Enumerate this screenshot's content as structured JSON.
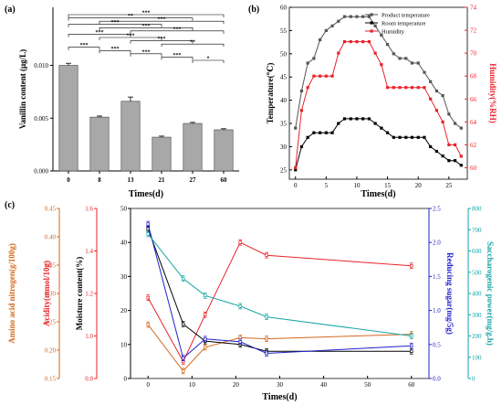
{
  "panels": {
    "a": "(a)",
    "b": "(b)",
    "c": "(c)"
  },
  "chart_data": [
    {
      "type": "bar",
      "panel": "(a)",
      "categories": [
        "0",
        "8",
        "13",
        "21",
        "27",
        "60"
      ],
      "values": [
        0.01,
        0.0051,
        0.0066,
        0.0032,
        0.0045,
        0.0039
      ],
      "errors": [
        0.0002,
        0.0001,
        0.0004,
        0.0001,
        0.0001,
        0.0001
      ],
      "xlabel": "Times(d)",
      "ylabel": "Vanillin content (μg/L)",
      "ylim": [
        0,
        0.0155
      ],
      "yticks": [
        "0.000",
        "0.005",
        "0.010"
      ],
      "bar_color": "#a8a8a8",
      "significance": [
        {
          "from": "0",
          "to": "8",
          "label": "***"
        },
        {
          "from": "0",
          "to": "13",
          "label": "***"
        },
        {
          "from": "0",
          "to": "21",
          "label": "***"
        },
        {
          "from": "0",
          "to": "27",
          "label": "**"
        },
        {
          "from": "0",
          "to": "60",
          "label": "***"
        },
        {
          "from": "8",
          "to": "13",
          "label": "***"
        },
        {
          "from": "8",
          "to": "21",
          "label": "***"
        },
        {
          "from": "8",
          "to": "27",
          "label": "***"
        },
        {
          "from": "8",
          "to": "60",
          "label": "***"
        },
        {
          "from": "13",
          "to": "21",
          "label": "***"
        },
        {
          "from": "13",
          "to": "27",
          "label": "***"
        },
        {
          "from": "13",
          "to": "60",
          "label": "***"
        },
        {
          "from": "21",
          "to": "27",
          "label": "***"
        },
        {
          "from": "21",
          "to": "60",
          "label": "**"
        },
        {
          "from": "27",
          "to": "60",
          "label": "*"
        }
      ]
    },
    {
      "type": "line",
      "panel": "(b)",
      "xlabel": "Times(d)",
      "ylabel": "Temperature(℃)",
      "ylabel_right": "Humidity(%RH)",
      "xlim": [
        -1,
        28
      ],
      "xticks": [
        "0",
        "5",
        "10",
        "15",
        "20",
        "25"
      ],
      "ylim": [
        23,
        60
      ],
      "yticks": [
        "25",
        "30",
        "35",
        "40",
        "45",
        "50",
        "55",
        "60"
      ],
      "ylim_right": [
        59,
        74
      ],
      "yticks_right": [
        "60",
        "62",
        "64",
        "66",
        "68",
        "70",
        "72",
        "74"
      ],
      "legend": [
        "Product temperature",
        "Room temperature",
        "Humidity"
      ],
      "legend_position": "top-right",
      "series": [
        {
          "name": "Product temperature",
          "color": "#555555",
          "axis": "left",
          "x": [
            0,
            1,
            2,
            3,
            4,
            5,
            6,
            7,
            8,
            9,
            10,
            11,
            12,
            13,
            14,
            15,
            16,
            17,
            18,
            19,
            20,
            21,
            22,
            23,
            24,
            25,
            26,
            27
          ],
          "y": [
            34,
            42,
            48,
            49,
            53,
            55,
            56,
            57,
            58,
            58,
            58,
            58,
            58,
            56,
            54,
            52,
            50,
            49,
            49,
            48,
            48,
            46,
            44,
            42,
            41,
            37,
            35,
            34
          ]
        },
        {
          "name": "Room temperature",
          "color": "#000000",
          "axis": "left",
          "x": [
            0,
            1,
            2,
            3,
            4,
            5,
            6,
            7,
            8,
            9,
            10,
            11,
            12,
            13,
            14,
            15,
            16,
            17,
            18,
            19,
            20,
            21,
            22,
            23,
            24,
            25,
            26,
            27
          ],
          "y": [
            25,
            30,
            32,
            33,
            33,
            33,
            33,
            35,
            36,
            36,
            36,
            36,
            36,
            35,
            34,
            33,
            32,
            32,
            32,
            32,
            32,
            32,
            30,
            29,
            28,
            27,
            27,
            26
          ]
        },
        {
          "name": "Humidity",
          "color": "#e8232a",
          "axis": "right",
          "x": [
            0,
            1,
            2,
            3,
            4,
            5,
            6,
            7,
            8,
            9,
            10,
            11,
            12,
            13,
            14,
            15,
            16,
            17,
            18,
            19,
            20,
            21,
            22,
            23,
            24,
            25,
            26,
            27
          ],
          "y": [
            60,
            65,
            67,
            68,
            68,
            68,
            68,
            70,
            71,
            71,
            71,
            71,
            71,
            70,
            69,
            67,
            67,
            67,
            67,
            67,
            67,
            67,
            66,
            65,
            64,
            62,
            62,
            61
          ]
        }
      ]
    },
    {
      "type": "line",
      "panel": "(c)",
      "xlabel": "Times(d)",
      "xlim": [
        -4,
        64
      ],
      "xticks": [
        "0",
        "10",
        "20",
        "30",
        "40",
        "50",
        "60"
      ],
      "axes": [
        {
          "label": "Amino acid nitrogen(g/100g)",
          "color": "#d2691e",
          "range": [
            0.15,
            0.45
          ],
          "ticks": [
            "0.15",
            "0.20",
            "0.25",
            "0.30",
            "0.35",
            "0.40",
            "0.45"
          ]
        },
        {
          "label": "Acidity(mmol/10g)",
          "color": "#e8232a",
          "range": [
            0.8,
            1.6
          ],
          "ticks": [
            "0.8",
            "1.0",
            "1.2",
            "1.4",
            "1.6"
          ]
        },
        {
          "label": "Moisture content(%)",
          "color": "#000000",
          "range": [
            0,
            50
          ],
          "ticks": [
            "0",
            "10",
            "20",
            "30",
            "40",
            "50"
          ]
        },
        {
          "label": "Reducing sugar(mg/5g)",
          "color": "#2222cc",
          "range": [
            0,
            2.5
          ],
          "ticks": [
            "0.0",
            "0.5",
            "1.0",
            "1.5",
            "2.0",
            "2.5"
          ]
        },
        {
          "label": "Saccharogenic power(mg/g.h)",
          "color": "#17a5a5",
          "range": [
            0,
            800
          ],
          "ticks": [
            "0",
            "100",
            "200",
            "300",
            "400",
            "500",
            "600",
            "700",
            "800"
          ]
        }
      ],
      "series": [
        {
          "name": "Amino acid nitrogen",
          "color": "#d2691e",
          "axis": 0,
          "x": [
            0,
            8,
            13,
            21,
            27,
            60
          ],
          "y": [
            0.245,
            0.163,
            0.205,
            0.222,
            0.22,
            0.228
          ]
        },
        {
          "name": "Acidity",
          "color": "#e8232a",
          "axis": 1,
          "x": [
            0,
            8,
            13,
            21,
            27,
            60
          ],
          "y": [
            1.18,
            0.88,
            1.1,
            1.44,
            1.38,
            1.33
          ]
        },
        {
          "name": "Moisture content",
          "color": "#000000",
          "axis": 2,
          "x": [
            0,
            8,
            13,
            21,
            27,
            60
          ],
          "y": [
            44,
            16,
            11,
            10,
            8,
            8
          ]
        },
        {
          "name": "Reducing sugar",
          "color": "#2222cc",
          "axis": 3,
          "x": [
            0,
            8,
            13,
            21,
            27,
            60
          ],
          "y": [
            2.27,
            0.3,
            0.58,
            0.54,
            0.37,
            0.48
          ]
        },
        {
          "name": "Saccharogenic power",
          "color": "#17a5a5",
          "axis": 4,
          "x": [
            0,
            8,
            13,
            21,
            27,
            60
          ],
          "y": [
            680,
            470,
            390,
            340,
            290,
            200
          ]
        }
      ]
    }
  ]
}
